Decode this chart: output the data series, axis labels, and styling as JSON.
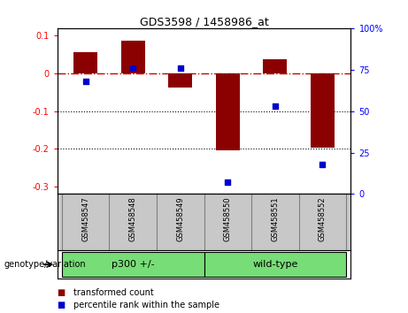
{
  "title": "GDS3598 / 1458986_at",
  "samples": [
    "GSM458547",
    "GSM458548",
    "GSM458549",
    "GSM458550",
    "GSM458551",
    "GSM458552"
  ],
  "transformed_counts": [
    0.057,
    0.088,
    -0.038,
    -0.205,
    0.038,
    -0.198
  ],
  "percentile_ranks": [
    68,
    76,
    76,
    7,
    53,
    18
  ],
  "groups": [
    "p300 +/-",
    "p300 +/-",
    "p300 +/-",
    "wild-type",
    "wild-type",
    "wild-type"
  ],
  "bar_color": "#8B0000",
  "dot_color": "#0000CC",
  "zero_line_color": "#cc0000",
  "ylim_left": [
    -0.32,
    0.12
  ],
  "ylim_right": [
    0,
    100
  ],
  "dotted_line_color": "#000000",
  "bg_color": "#ffffff",
  "plot_bg": "#ffffff",
  "label_bg": "#c8c8c8",
  "green_color": "#77DD77",
  "legend_items": [
    "transformed count",
    "percentile rank within the sample"
  ],
  "group_label": "genotype/variation"
}
